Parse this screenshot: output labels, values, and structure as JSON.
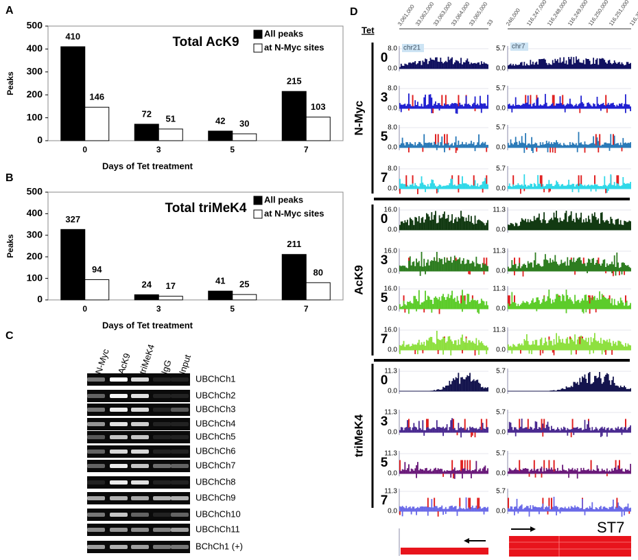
{
  "chart_data": [
    {
      "type": "bar",
      "panel_label": "A",
      "title": "Total AcK9",
      "y_label": "Peaks",
      "x_label": "Days of Tet treatment",
      "categories": [
        "0",
        "3",
        "5",
        "7"
      ],
      "series": [
        {
          "name": "All peaks",
          "color": "#000000",
          "values": [
            410,
            72,
            42,
            215
          ]
        },
        {
          "name": "at N-Myc sites",
          "color": "#ffffff",
          "values": [
            146,
            51,
            30,
            103
          ]
        }
      ],
      "ylim": [
        0,
        500
      ],
      "yticks": [
        0,
        100,
        200,
        300,
        400,
        500
      ],
      "legend": "upper right"
    },
    {
      "type": "bar",
      "panel_label": "B",
      "title": "Total triMeK4",
      "y_label": "Peaks",
      "x_label": "Days of Tet treatment",
      "categories": [
        "0",
        "3",
        "5",
        "7"
      ],
      "series": [
        {
          "name": "All peaks",
          "color": "#000000",
          "values": [
            327,
            24,
            41,
            211
          ]
        },
        {
          "name": "at N-Myc sites",
          "color": "#ffffff",
          "values": [
            94,
            17,
            25,
            80
          ]
        }
      ],
      "ylim": [
        0,
        500
      ],
      "yticks": [
        0,
        100,
        200,
        300,
        400,
        500
      ],
      "legend": "upper right"
    }
  ],
  "panel_c": {
    "label": "C",
    "lanes": [
      "N-Myc",
      "AcK9",
      "triMeK4",
      "IgG",
      "Input"
    ],
    "rows": [
      "UBChCh1",
      "UBChCh2",
      "UBChCh3",
      "UBChCh4",
      "UBChCh5",
      "UBChCh6",
      "UBChCh7",
      "UBChCh8",
      "UBChCh9",
      "UBChCh10",
      "UBChCh11",
      "BChCh1 (+)"
    ]
  },
  "panel_d": {
    "label": "D",
    "tet_header": "Tet",
    "coords_left": [
      "3,061,000",
      "33,062,000",
      "33,063,000",
      "33,064,000",
      "33,065,000",
      "33"
    ],
    "coords_right": [
      "246,000",
      "116,247,000",
      "116,248,000",
      "116,249,000",
      "116,250,000",
      "116,251,000",
      "116,252,00"
    ],
    "chrom_left": "chr21",
    "chrom_right": "chr7",
    "gene": "ST7",
    "groups": [
      {
        "name": "N-Myc",
        "rows": [
          {
            "tet": "0",
            "color": "#101060",
            "left": [
              "8.0",
              "0.0"
            ],
            "right": [
              "5.7",
              "0.0"
            ]
          },
          {
            "tet": "3",
            "color": "#2020d0",
            "left": [
              "8.0",
              "0.0"
            ],
            "right": [
              "5.7",
              "0.0"
            ]
          },
          {
            "tet": "5",
            "color": "#2a7ab8",
            "left": [
              "8.0",
              "0.0"
            ],
            "right": [
              "5.7",
              "0.0"
            ]
          },
          {
            "tet": "7",
            "color": "#30d8e8",
            "left": [
              "8.0",
              "0.0"
            ],
            "right": [
              "5.7",
              "0.0"
            ]
          }
        ]
      },
      {
        "name": "AcK9",
        "rows": [
          {
            "tet": "0",
            "color": "#123a12",
            "left": [
              "16.0",
              "0.0"
            ],
            "right": [
              "11.3",
              "0.0"
            ]
          },
          {
            "tet": "3",
            "color": "#2e7d20",
            "left": [
              "16.0",
              "0.0"
            ],
            "right": [
              "11.3",
              "0.0"
            ]
          },
          {
            "tet": "5",
            "color": "#5ccc2a",
            "left": [
              "16.0",
              "0.0"
            ],
            "right": [
              "11.3",
              "0.0"
            ]
          },
          {
            "tet": "7",
            "color": "#8ee040",
            "left": [
              "16.0",
              "0.0"
            ],
            "right": [
              "11.3",
              "0.0"
            ]
          }
        ]
      },
      {
        "name": "triMeK4",
        "rows": [
          {
            "tet": "0",
            "color": "#14144e",
            "left": [
              "11.3",
              "0.0"
            ],
            "right": [
              "5.7",
              "0.0"
            ]
          },
          {
            "tet": "3",
            "color": "#4a2a90",
            "left": [
              "11.3",
              "0.0"
            ],
            "right": [
              "5.7",
              "0.0"
            ]
          },
          {
            "tet": "5",
            "color": "#6a1a7a",
            "left": [
              "11.3",
              "0.0"
            ],
            "right": [
              "5.7",
              "0.0"
            ]
          },
          {
            "tet": "7",
            "color": "#6a6ae8",
            "left": [
              "11.3",
              "0.0"
            ],
            "right": [
              "5.7",
              "0.0"
            ]
          }
        ]
      }
    ]
  }
}
